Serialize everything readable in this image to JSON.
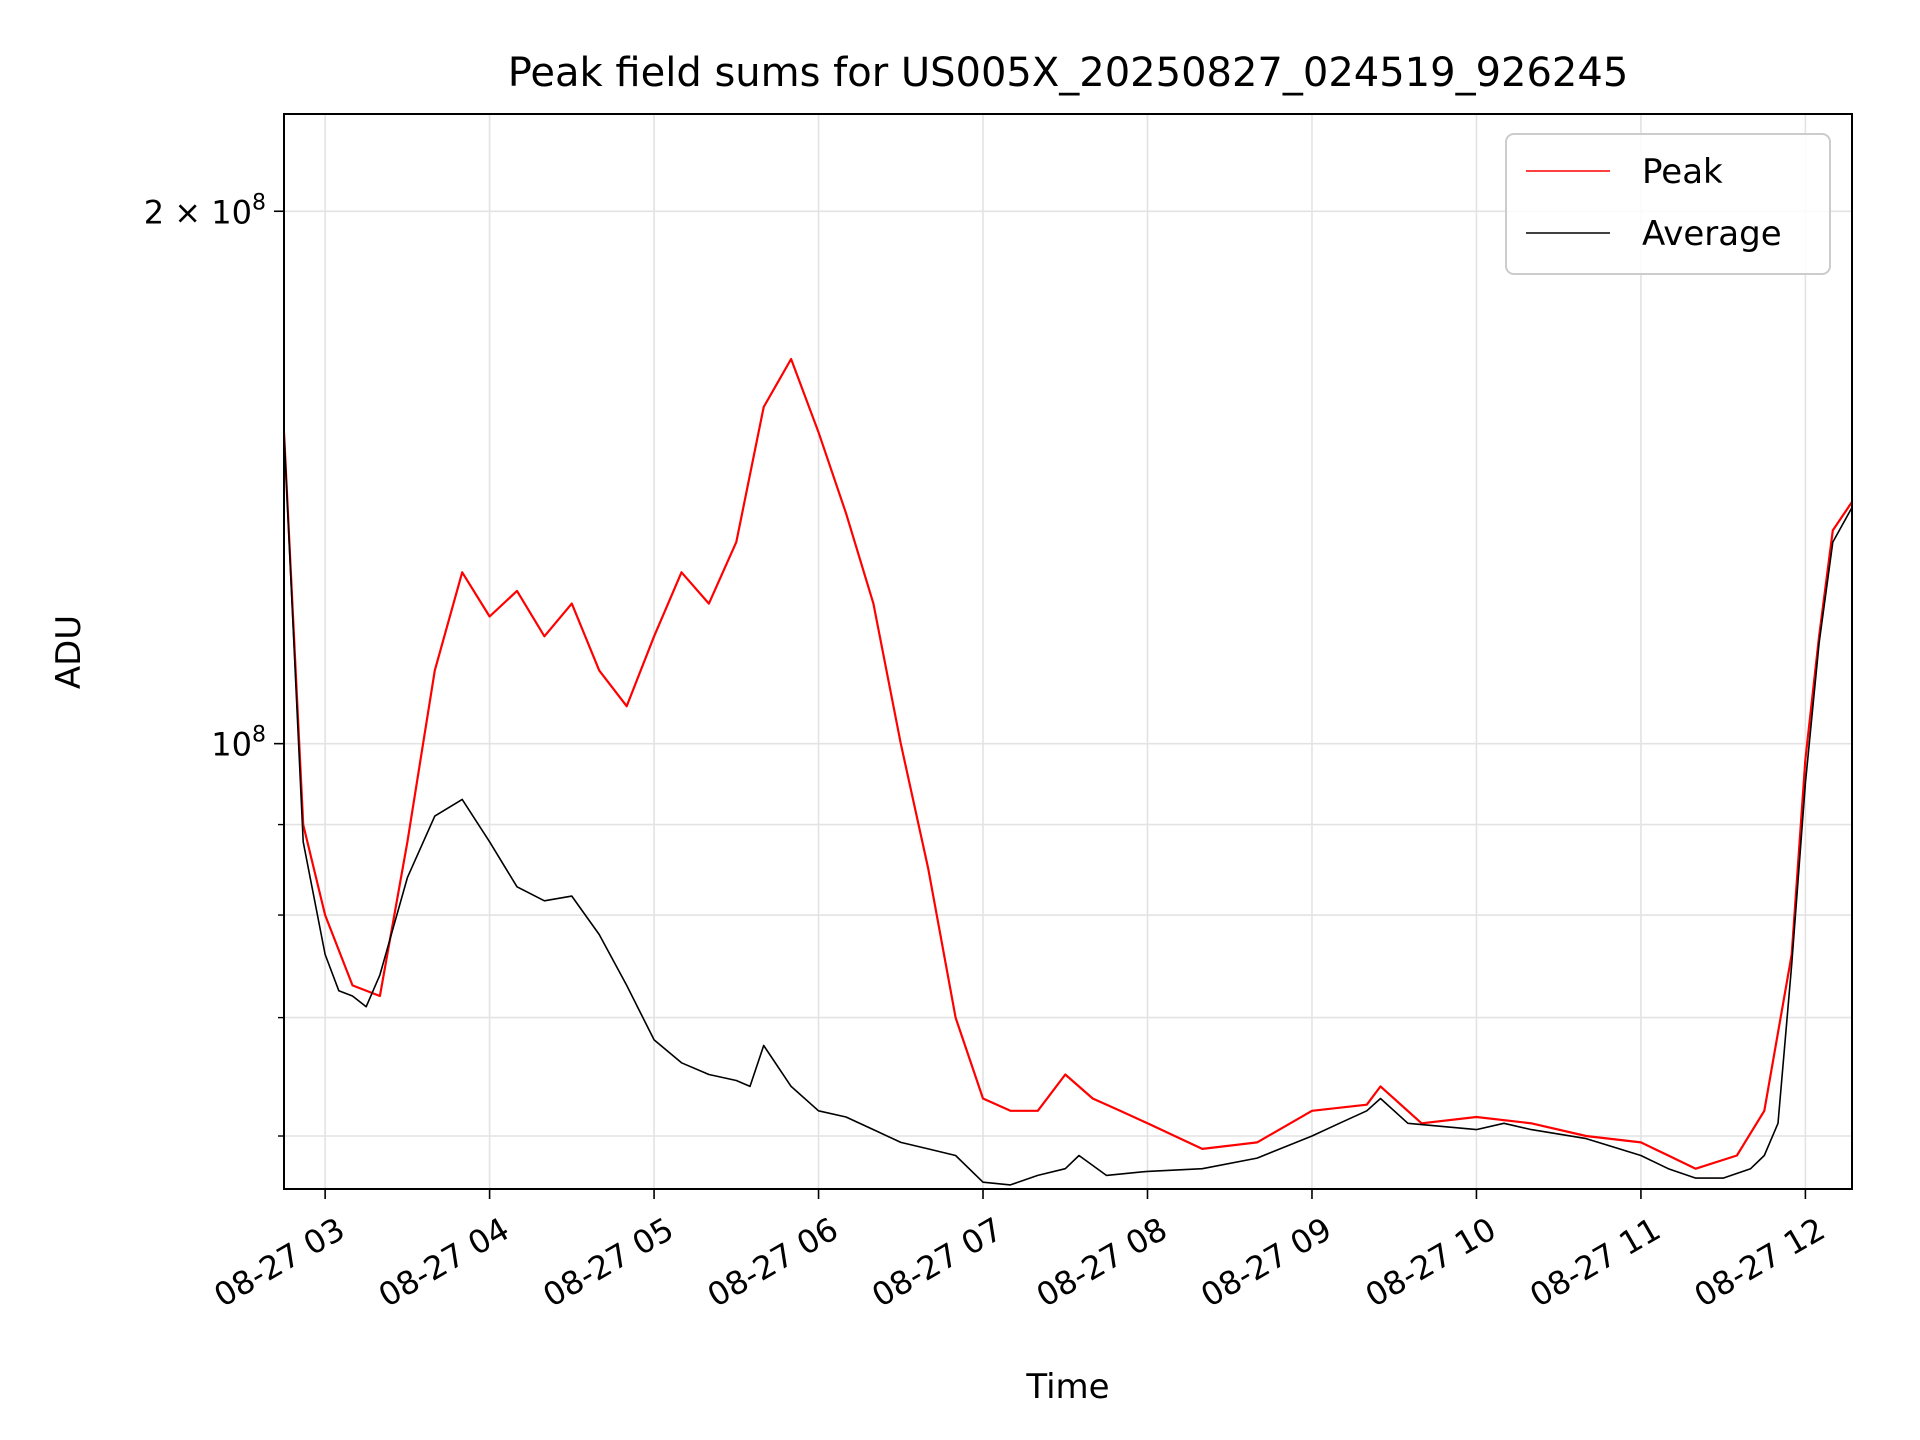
{
  "chart_data": {
    "type": "line",
    "title": "Peak field sums for US005X_20250827_024519_926245",
    "xlabel": "Time",
    "ylabel": "ADU",
    "yscale": "log",
    "grid": true,
    "legend_placement": "top-right",
    "x_range": [
      "2025-08-27 02:45",
      "2025-08-27 12:17"
    ],
    "ylim": [
      56000000,
      227000000
    ],
    "x_ticks": [
      {
        "t": "2025-08-27 03:00",
        "label": "08-27 03"
      },
      {
        "t": "2025-08-27 04:00",
        "label": "08-27 04"
      },
      {
        "t": "2025-08-27 05:00",
        "label": "08-27 05"
      },
      {
        "t": "2025-08-27 06:00",
        "label": "08-27 06"
      },
      {
        "t": "2025-08-27 07:00",
        "label": "08-27 07"
      },
      {
        "t": "2025-08-27 08:00",
        "label": "08-27 08"
      },
      {
        "t": "2025-08-27 09:00",
        "label": "08-27 09"
      },
      {
        "t": "2025-08-27 10:00",
        "label": "08-27 10"
      },
      {
        "t": "2025-08-27 11:00",
        "label": "08-27 11"
      },
      {
        "t": "2025-08-27 12:00",
        "label": "08-27 12"
      }
    ],
    "y_major_ticks": [
      {
        "value": 100000000,
        "base": "10",
        "exp": "8",
        "mult": ""
      },
      {
        "value": 200000000,
        "base": "10",
        "exp": "8",
        "mult": "2 × "
      }
    ],
    "y_minor_ticks": [
      60000000,
      70000000,
      80000000,
      90000000
    ],
    "series": [
      {
        "name": "Peak",
        "color": "#ff0000",
        "x": [
          "2025-08-27 02:45",
          "2025-08-27 02:52",
          "2025-08-27 03:00",
          "2025-08-27 03:10",
          "2025-08-27 03:20",
          "2025-08-27 03:30",
          "2025-08-27 03:40",
          "2025-08-27 03:50",
          "2025-08-27 04:00",
          "2025-08-27 04:10",
          "2025-08-27 04:20",
          "2025-08-27 04:30",
          "2025-08-27 04:40",
          "2025-08-27 04:50",
          "2025-08-27 05:00",
          "2025-08-27 05:10",
          "2025-08-27 05:20",
          "2025-08-27 05:30",
          "2025-08-27 05:40",
          "2025-08-27 05:50",
          "2025-08-27 06:00",
          "2025-08-27 06:10",
          "2025-08-27 06:20",
          "2025-08-27 06:30",
          "2025-08-27 06:40",
          "2025-08-27 06:50",
          "2025-08-27 07:00",
          "2025-08-27 07:10",
          "2025-08-27 07:20",
          "2025-08-27 07:30",
          "2025-08-27 07:40",
          "2025-08-27 07:50",
          "2025-08-27 08:00",
          "2025-08-27 08:20",
          "2025-08-27 08:40",
          "2025-08-27 09:00",
          "2025-08-27 09:20",
          "2025-08-27 09:25",
          "2025-08-27 09:40",
          "2025-08-27 10:00",
          "2025-08-27 10:20",
          "2025-08-27 10:40",
          "2025-08-27 11:00",
          "2025-08-27 11:10",
          "2025-08-27 11:20",
          "2025-08-27 11:35",
          "2025-08-27 11:45",
          "2025-08-27 11:55",
          "2025-08-27 12:00",
          "2025-08-27 12:05",
          "2025-08-27 12:10",
          "2025-08-27 12:17"
        ],
        "y": [
          150000000,
          90000000,
          80000000,
          73000000,
          72000000,
          88000000,
          110000000,
          125000000,
          118000000,
          122000000,
          115000000,
          120000000,
          110000000,
          105000000,
          115000000,
          125000000,
          120000000,
          130000000,
          155000000,
          165000000,
          150000000,
          135000000,
          120000000,
          100000000,
          85000000,
          70000000,
          63000000,
          62000000,
          62000000,
          65000000,
          63000000,
          62000000,
          61000000,
          59000000,
          59500000,
          62000000,
          62500000,
          64000000,
          61000000,
          61500000,
          61000000,
          60000000,
          59500000,
          58500000,
          57500000,
          58500000,
          62000000,
          76000000,
          98000000,
          115000000,
          132000000,
          137000000
        ]
      },
      {
        "name": "Average",
        "color": "#000000",
        "x": [
          "2025-08-27 02:45",
          "2025-08-27 02:52",
          "2025-08-27 03:00",
          "2025-08-27 03:05",
          "2025-08-27 03:10",
          "2025-08-27 03:15",
          "2025-08-27 03:20",
          "2025-08-27 03:30",
          "2025-08-27 03:40",
          "2025-08-27 03:50",
          "2025-08-27 04:00",
          "2025-08-27 04:10",
          "2025-08-27 04:20",
          "2025-08-27 04:30",
          "2025-08-27 04:40",
          "2025-08-27 04:50",
          "2025-08-27 05:00",
          "2025-08-27 05:10",
          "2025-08-27 05:20",
          "2025-08-27 05:30",
          "2025-08-27 05:35",
          "2025-08-27 05:40",
          "2025-08-27 05:50",
          "2025-08-27 06:00",
          "2025-08-27 06:10",
          "2025-08-27 06:20",
          "2025-08-27 06:30",
          "2025-08-27 06:40",
          "2025-08-27 06:50",
          "2025-08-27 07:00",
          "2025-08-27 07:10",
          "2025-08-27 07:20",
          "2025-08-27 07:30",
          "2025-08-27 07:35",
          "2025-08-27 07:45",
          "2025-08-27 08:00",
          "2025-08-27 08:20",
          "2025-08-27 08:40",
          "2025-08-27 09:00",
          "2025-08-27 09:10",
          "2025-08-27 09:20",
          "2025-08-27 09:25",
          "2025-08-27 09:35",
          "2025-08-27 09:50",
          "2025-08-27 10:00",
          "2025-08-27 10:10",
          "2025-08-27 10:20",
          "2025-08-27 10:40",
          "2025-08-27 11:00",
          "2025-08-27 11:10",
          "2025-08-27 11:20",
          "2025-08-27 11:30",
          "2025-08-27 11:40",
          "2025-08-27 11:45",
          "2025-08-27 11:50",
          "2025-08-27 11:55",
          "2025-08-27 12:00",
          "2025-08-27 12:05",
          "2025-08-27 12:10",
          "2025-08-27 12:17"
        ],
        "y": [
          150000000,
          88000000,
          76000000,
          72500000,
          72000000,
          71000000,
          74000000,
          84000000,
          91000000,
          93000000,
          88000000,
          83000000,
          81500000,
          82000000,
          78000000,
          73000000,
          68000000,
          66000000,
          65000000,
          64500000,
          64000000,
          67500000,
          64000000,
          62000000,
          61500000,
          60500000,
          59500000,
          59000000,
          58500000,
          56500000,
          56300000,
          57000000,
          57500000,
          58500000,
          57000000,
          57300000,
          57500000,
          58300000,
          60000000,
          61000000,
          62000000,
          63000000,
          61000000,
          60700000,
          60500000,
          61000000,
          60500000,
          59800000,
          58500000,
          57500000,
          56800000,
          56800000,
          57500000,
          58500000,
          61000000,
          75000000,
          95000000,
          114000000,
          130000000,
          136000000
        ]
      }
    ]
  }
}
